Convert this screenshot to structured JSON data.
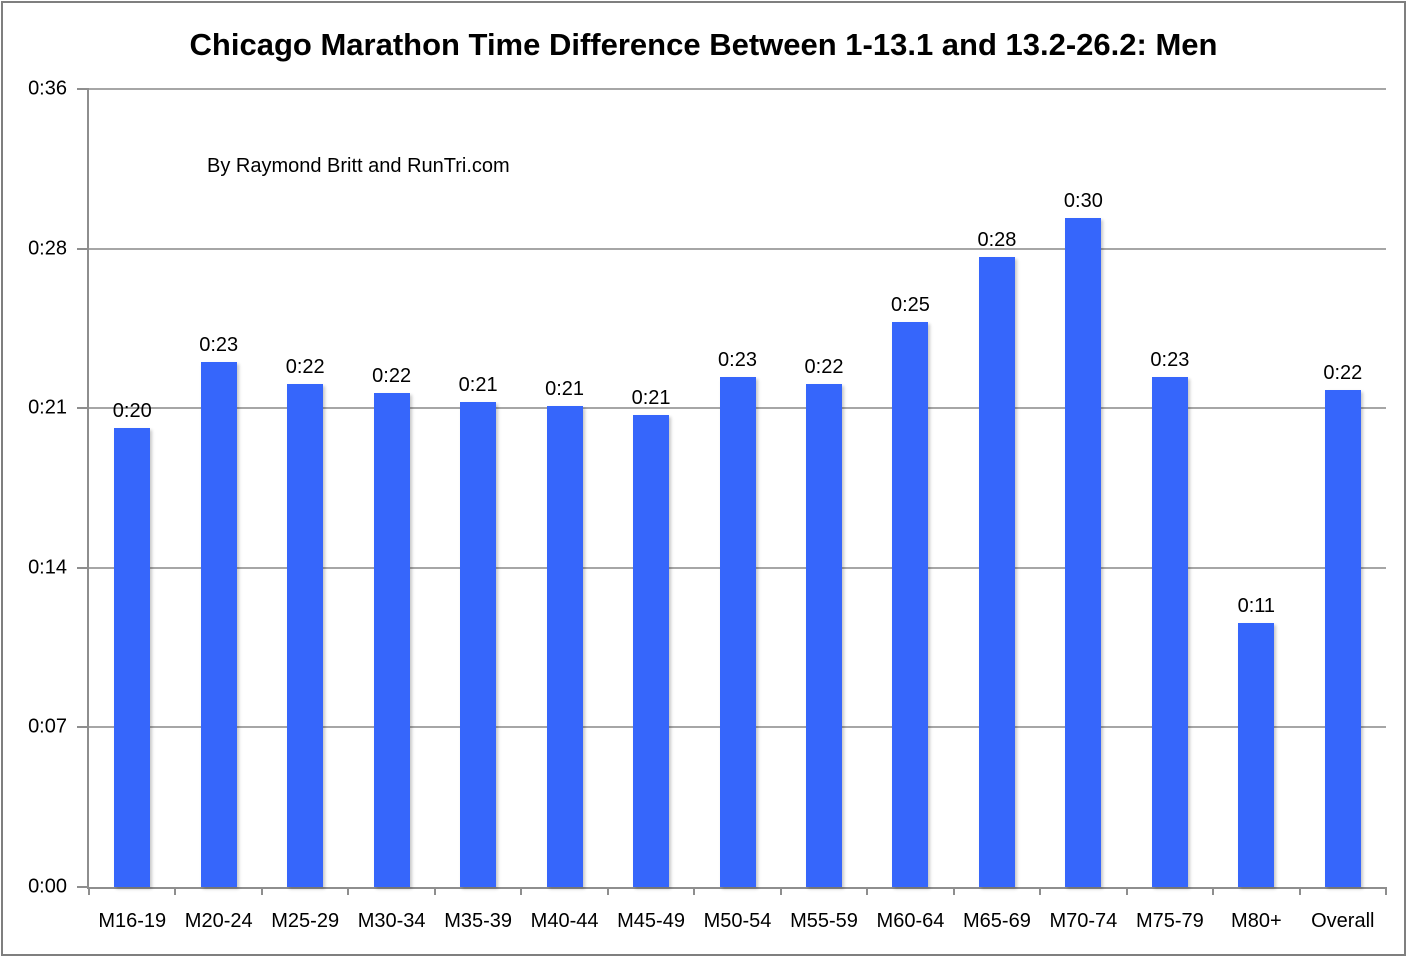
{
  "chart": {
    "title": "Chicago Marathon Time Difference Between 1-13.1 and 13.2-26.2: Men",
    "subtitle": "By Raymond Britt and RunTri.com"
  },
  "chart_data": {
    "type": "bar",
    "title": "Chicago Marathon Time Difference Between 1-13.1 and 13.2-26.2: Men",
    "annotation": "By Raymond Britt and RunTri.com",
    "xlabel": "",
    "ylabel": "",
    "categories": [
      "M16-19",
      "M20-24",
      "M25-29",
      "M30-34",
      "M35-39",
      "M40-44",
      "M45-49",
      "M50-54",
      "M55-59",
      "M60-64",
      "M65-69",
      "M70-74",
      "M75-79",
      "M80+",
      "Overall"
    ],
    "bar_labels": [
      "0:20",
      "0:23",
      "0:22",
      "0:22",
      "0:21",
      "0:21",
      "0:21",
      "0:23",
      "0:22",
      "0:25",
      "0:28",
      "0:30",
      "0:23",
      "0:11",
      "0:22"
    ],
    "values_minutes": [
      20.7,
      23.7,
      22.7,
      22.3,
      21.9,
      21.7,
      21.3,
      23.0,
      22.7,
      25.5,
      28.4,
      30.2,
      23.0,
      11.9,
      22.4
    ],
    "ylim_minutes": [
      0,
      36
    ],
    "y_ticks": [
      {
        "label": "0:00",
        "minutes": 0
      },
      {
        "label": "0:07",
        "minutes": 7.2
      },
      {
        "label": "0:14",
        "minutes": 14.4
      },
      {
        "label": "0:21",
        "minutes": 21.6
      },
      {
        "label": "0:28",
        "minutes": 28.8
      },
      {
        "label": "0:36",
        "minutes": 36
      }
    ],
    "grid": true,
    "legend": false,
    "colors": {
      "bar": "#3666fb",
      "gridline": "#a6a6a6",
      "axis": "#8e8e8e",
      "text": "#000000",
      "frame": "#7f7f7f",
      "background": "#ffffff"
    }
  }
}
